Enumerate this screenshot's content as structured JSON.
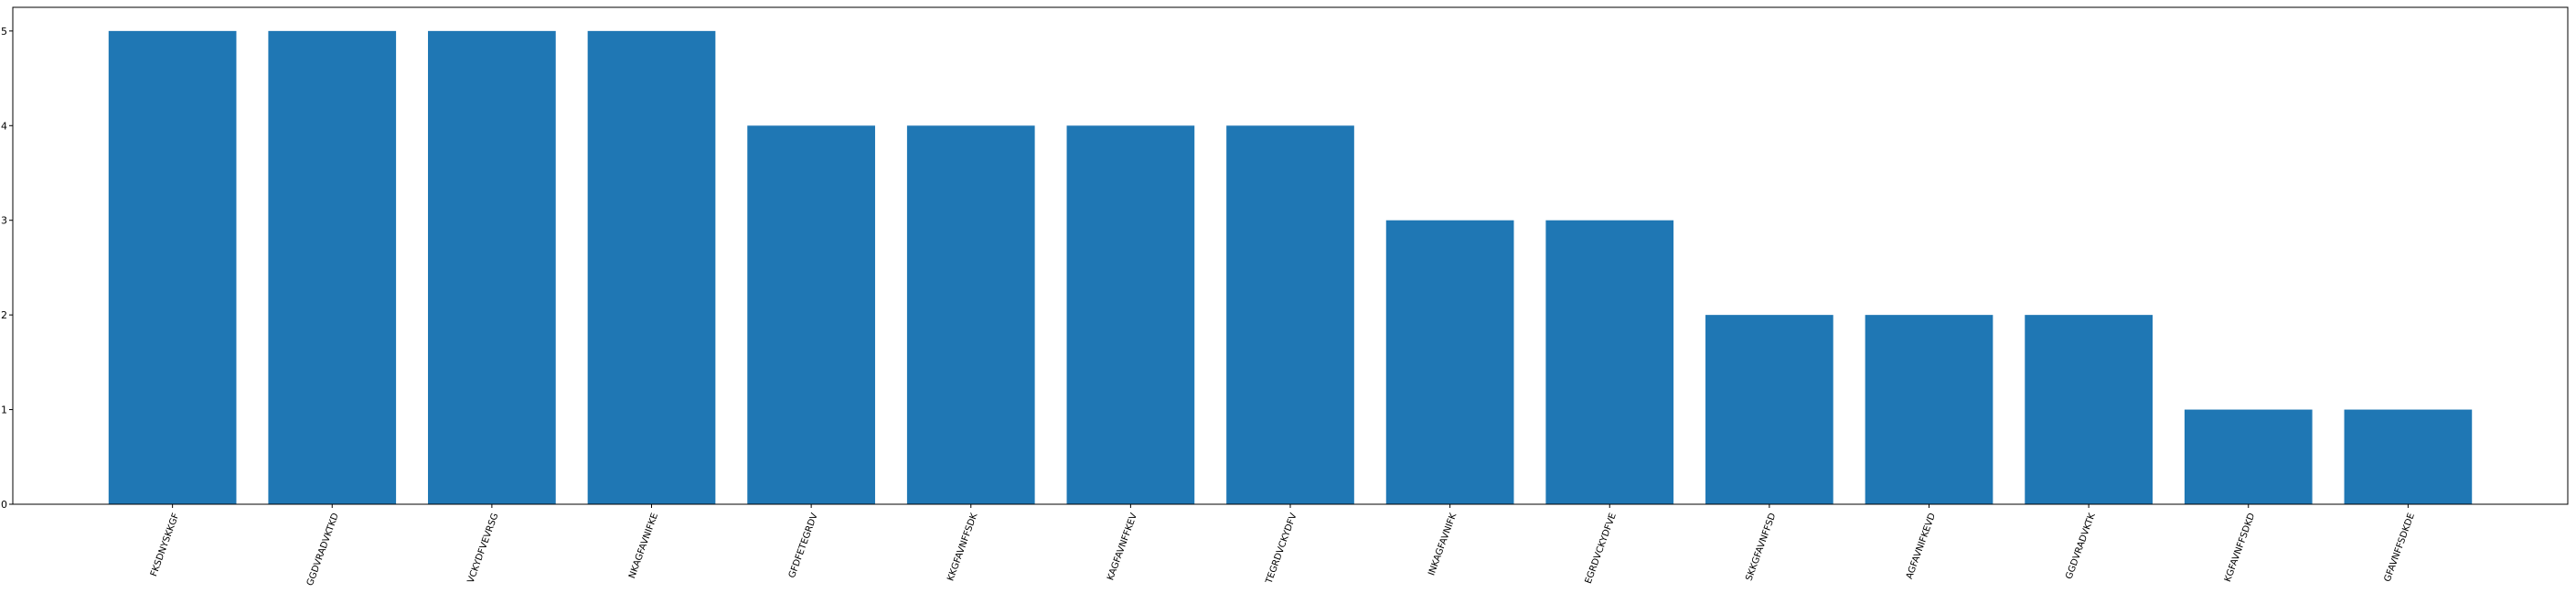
{
  "chart_data": {
    "type": "bar",
    "categories": [
      "FKSDNYSKKGF",
      "GGDVRADVKTKD",
      "VCKYDFVEVRSG",
      "NKAGFAVNIFKE",
      "GFDFETEGRDV",
      "KKGFAVNFFSDK",
      "KAGFAVNFFKEV",
      "TEGRDVCKYDFV",
      "INKAGFAVNIFK",
      "EGRDVCKYDFVE",
      "SKKGFAVNFFSD",
      "AGFAVNIFKEVD",
      "GGDVRADVKTK",
      "KGFAVNFFSDKD",
      "GFAVNFFSDKDE"
    ],
    "values": [
      5,
      5,
      5,
      5,
      4,
      4,
      4,
      4,
      3,
      3,
      2,
      2,
      2,
      1,
      1
    ],
    "title": "",
    "xlabel": "",
    "ylabel": "",
    "ylim": [
      0,
      5.25
    ],
    "yticks": [
      "0",
      "1",
      "2",
      "3",
      "4",
      "5"
    ],
    "grid": false,
    "colors": {
      "bar": "#1f77b4",
      "axis": "#000000",
      "background": "#ffffff"
    }
  }
}
